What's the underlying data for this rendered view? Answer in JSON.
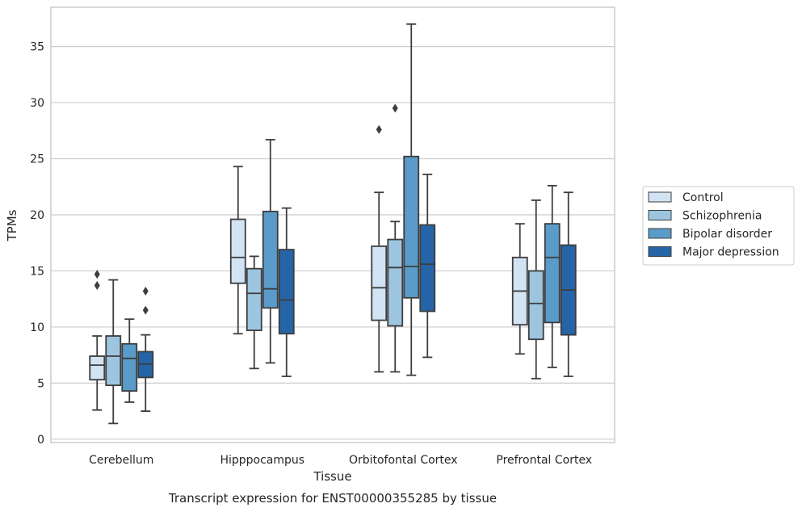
{
  "caption": "Transcript expression for ENST00000355285 by tissue",
  "chart_data": {
    "type": "box",
    "xlabel": "Tissue",
    "ylabel": "TPMs",
    "ylim": [
      -0.3,
      38.5
    ],
    "yticks": [
      0,
      5,
      10,
      15,
      20,
      25,
      30,
      35
    ],
    "grid": true,
    "legend_position": "right",
    "categories": [
      "Cerebellum",
      "Hipppocampus",
      "Orbitofontal Cortex",
      "Prefrontal Cortex"
    ],
    "series": [
      {
        "name": "Control",
        "color": "#d2e3f3",
        "boxes": [
          {
            "whislo": 2.6,
            "q1": 5.3,
            "med": 6.6,
            "q3": 7.4,
            "whishi": 9.2,
            "fliers": [
              13.7,
              14.7
            ]
          },
          {
            "whislo": 9.4,
            "q1": 13.9,
            "med": 16.2,
            "q3": 19.6,
            "whishi": 24.3,
            "fliers": []
          },
          {
            "whislo": 6.0,
            "q1": 10.6,
            "med": 13.5,
            "q3": 17.2,
            "whishi": 22.0,
            "fliers": [
              27.6
            ]
          },
          {
            "whislo": 7.6,
            "q1": 10.2,
            "med": 13.2,
            "q3": 16.2,
            "whishi": 19.2,
            "fliers": []
          }
        ]
      },
      {
        "name": "Schizophrenia",
        "color": "#9dc5e0",
        "boxes": [
          {
            "whislo": 1.4,
            "q1": 4.8,
            "med": 7.4,
            "q3": 9.2,
            "whishi": 14.2,
            "fliers": []
          },
          {
            "whislo": 6.3,
            "q1": 9.7,
            "med": 13.0,
            "q3": 15.2,
            "whishi": 16.3,
            "fliers": []
          },
          {
            "whislo": 6.0,
            "q1": 10.1,
            "med": 15.3,
            "q3": 17.8,
            "whishi": 19.4,
            "fliers": [
              29.5
            ]
          },
          {
            "whislo": 5.4,
            "q1": 8.9,
            "med": 12.1,
            "q3": 15.0,
            "whishi": 21.3,
            "fliers": []
          }
        ]
      },
      {
        "name": "Bipolar disorder",
        "color": "#5a9bc9",
        "boxes": [
          {
            "whislo": 3.3,
            "q1": 4.3,
            "med": 7.2,
            "q3": 8.5,
            "whishi": 10.7,
            "fliers": []
          },
          {
            "whislo": 6.8,
            "q1": 11.7,
            "med": 13.4,
            "q3": 20.3,
            "whishi": 26.7,
            "fliers": []
          },
          {
            "whislo": 5.7,
            "q1": 12.6,
            "med": 15.4,
            "q3": 25.2,
            "whishi": 37.0,
            "fliers": []
          },
          {
            "whislo": 6.4,
            "q1": 10.4,
            "med": 16.2,
            "q3": 19.2,
            "whishi": 22.6,
            "fliers": []
          }
        ]
      },
      {
        "name": "Major depression",
        "color": "#2565a7",
        "boxes": [
          {
            "whislo": 2.5,
            "q1": 5.5,
            "med": 6.7,
            "q3": 7.8,
            "whishi": 9.3,
            "fliers": [
              11.5,
              13.2
            ]
          },
          {
            "whislo": 5.6,
            "q1": 9.4,
            "med": 12.4,
            "q3": 16.9,
            "whishi": 20.6,
            "fliers": []
          },
          {
            "whislo": 7.3,
            "q1": 11.4,
            "med": 15.6,
            "q3": 19.1,
            "whishi": 23.6,
            "fliers": []
          },
          {
            "whislo": 5.6,
            "q1": 9.3,
            "med": 13.3,
            "q3": 17.3,
            "whishi": 22.0,
            "fliers": []
          }
        ]
      }
    ]
  }
}
